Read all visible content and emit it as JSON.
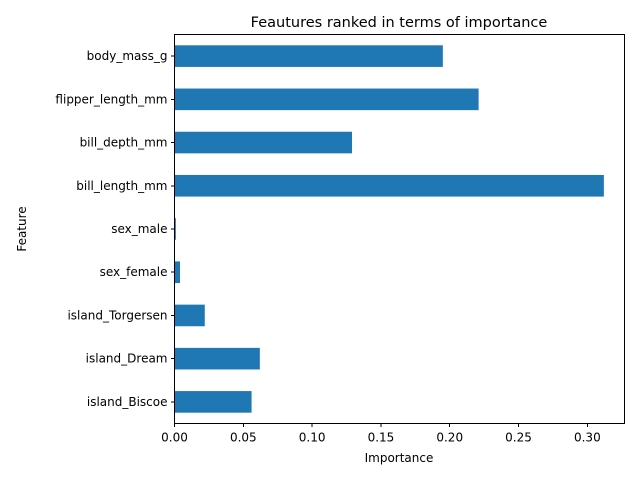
{
  "chart_data": {
    "type": "bar",
    "orientation": "horizontal",
    "title": "Feautures ranked in terms of importance",
    "xlabel": "Importance",
    "ylabel": "Feature",
    "categories": [
      "island_Biscoe",
      "island_Dream",
      "island_Torgersen",
      "sex_female",
      "sex_male",
      "bill_length_mm",
      "bill_depth_mm",
      "flipper_length_mm",
      "body_mass_g"
    ],
    "values": [
      0.056,
      0.062,
      0.022,
      0.004,
      0.001,
      0.312,
      0.129,
      0.221,
      0.195
    ],
    "xlim": [
      0,
      0.327
    ],
    "xticks": [
      0.0,
      0.05,
      0.1,
      0.15,
      0.2,
      0.25,
      0.3
    ],
    "xtick_labels": [
      "0.00",
      "0.05",
      "0.10",
      "0.15",
      "0.20",
      "0.25",
      "0.30"
    ],
    "bar_color": "#1f77b4",
    "grid": false,
    "legend": "none"
  }
}
